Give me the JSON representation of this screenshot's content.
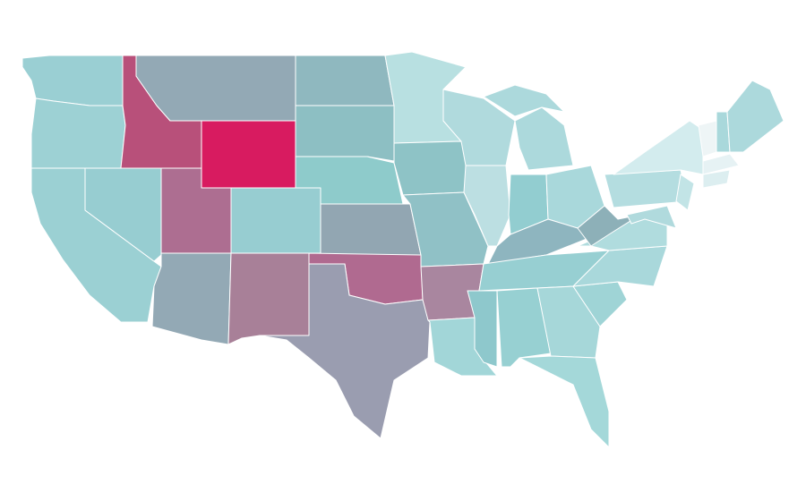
{
  "map": {
    "background": "#ffffff",
    "border_color": "#ffffff",
    "regions": [
      {
        "color": "#9acfd3"
      },
      {
        "color": "#9dd1d4"
      },
      {
        "color": "#9bd0d3"
      },
      {
        "color": "#97cdd1"
      },
      {
        "color": "#b8507a"
      },
      {
        "color": "#93a9b5"
      },
      {
        "color": "#d81b60"
      },
      {
        "color": "#ad6e91"
      },
      {
        "color": "#97cdd1"
      },
      {
        "color": "#93a9b5"
      },
      {
        "color": "#a88098"
      },
      {
        "color": "#8fb8bf"
      },
      {
        "color": "#8dbfc3"
      },
      {
        "color": "#8ecbcb"
      },
      {
        "color": "#92a6b2"
      },
      {
        "color": "#b06a90"
      },
      {
        "color": "#9a9db0"
      },
      {
        "color": "#b8e0e1"
      },
      {
        "color": "#8ec3c6"
      },
      {
        "color": "#90c1c6"
      },
      {
        "color": "#a9869f"
      },
      {
        "color": "#a2d6d8"
      },
      {
        "color": "#b0dadd"
      },
      {
        "color": "#bcdfe2"
      },
      {
        "color": "#acd9dc"
      },
      {
        "color": "#acd9dc"
      },
      {
        "color": "#92cdd0"
      },
      {
        "color": "#a9d8db"
      },
      {
        "color": "#8eb5bf"
      },
      {
        "color": "#97cfd2"
      },
      {
        "color": "#8ec8cc"
      },
      {
        "color": "#97d0d2"
      },
      {
        "color": "#a6d7d9"
      },
      {
        "color": "#a4d8d9"
      },
      {
        "color": "#9fd4d6"
      },
      {
        "color": "#a9d8db"
      },
      {
        "color": "#b0dcde"
      },
      {
        "color": "#8db0b8"
      },
      {
        "color": "#b4dde0"
      },
      {
        "color": "#d3ecee"
      },
      {
        "color": "#eef5f6"
      },
      {
        "color": "#a9d8db"
      },
      {
        "color": "#acd9dc"
      },
      {
        "color": "#e6f2f4"
      },
      {
        "color": "#dceef0"
      },
      {
        "color": "#c2e4e6"
      },
      {
        "color": "#b0dadd"
      }
    ]
  }
}
